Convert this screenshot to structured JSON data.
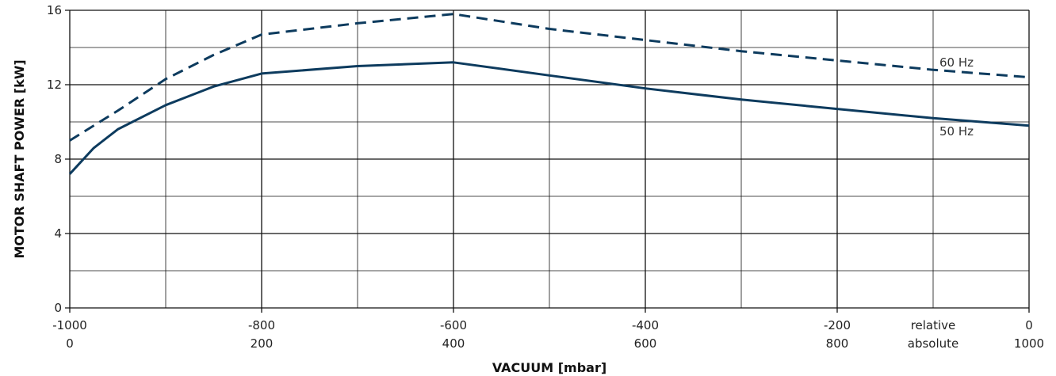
{
  "chart_data": {
    "type": "line",
    "xlabel": "VACUUM  [mbar]",
    "ylabel": "MOTOR SHAFT POWER  [kW]",
    "xlim": [
      -1000,
      0
    ],
    "ylim": [
      0,
      16
    ],
    "grid": true,
    "x_ticks": [
      {
        "x": -1000,
        "relative": "-1000",
        "absolute": "0"
      },
      {
        "x": -800,
        "relative": "-800",
        "absolute": "200"
      },
      {
        "x": -600,
        "relative": "-600",
        "absolute": "400"
      },
      {
        "x": -400,
        "relative": "-400",
        "absolute": "600"
      },
      {
        "x": -200,
        "relative": "-200",
        "absolute": "800"
      },
      {
        "x": 0,
        "relative": "0",
        "absolute": "1000"
      }
    ],
    "x_scale_labels": {
      "relative": "relative",
      "absolute": "absolute"
    },
    "y_ticks": [
      "0",
      "4",
      "8",
      "12",
      "16"
    ],
    "series": [
      {
        "name": "60 Hz",
        "style": "dashed",
        "color": "#0d3b5e",
        "x": [
          -1000,
          -950,
          -900,
          -850,
          -800,
          -700,
          -600,
          -500,
          -400,
          -300,
          -200,
          -100,
          0
        ],
        "y": [
          9.0,
          10.6,
          12.3,
          13.6,
          14.7,
          15.3,
          15.8,
          15.0,
          14.4,
          13.8,
          13.3,
          12.8,
          12.4
        ]
      },
      {
        "name": "50 Hz",
        "style": "solid",
        "color": "#0d3b5e",
        "x": [
          -1000,
          -975,
          -950,
          -900,
          -850,
          -800,
          -700,
          -600,
          -500,
          -400,
          -300,
          -200,
          -100,
          0
        ],
        "y": [
          7.2,
          8.6,
          9.6,
          10.9,
          11.9,
          12.6,
          13.0,
          13.2,
          12.5,
          11.8,
          11.2,
          10.7,
          10.2,
          9.8
        ]
      }
    ]
  }
}
